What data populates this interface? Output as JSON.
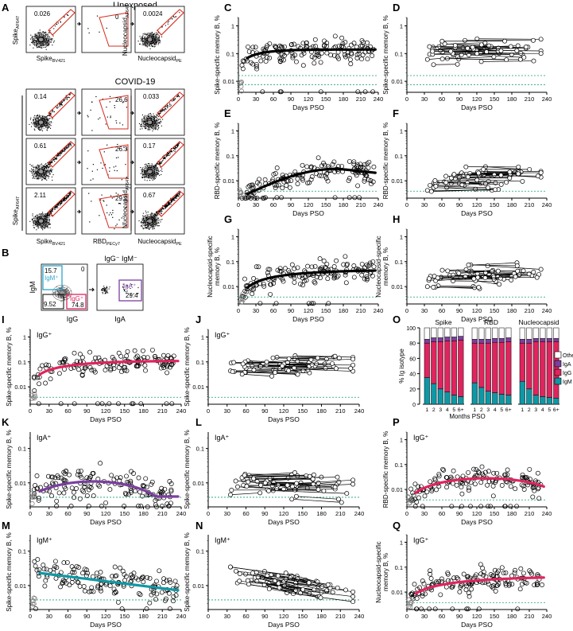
{
  "figure": {
    "panel_letters": [
      "A",
      "B",
      "C",
      "D",
      "E",
      "F",
      "G",
      "H",
      "I",
      "J",
      "K",
      "L",
      "M",
      "N",
      "O",
      "P",
      "Q"
    ],
    "x_axis_label": "Days PSO",
    "x_ticks": [
      "0",
      "30",
      "60",
      "90",
      "120",
      "150",
      "180",
      "210",
      "240"
    ],
    "y_ticks_log": [
      "0.01",
      "0.1",
      "1"
    ],
    "colors": {
      "spike_fit": "#000000",
      "igg": "#e0245e",
      "iga": "#7b3fa0",
      "igm": "#0e98a5",
      "others": "#ffffff",
      "threshold": "#1b9e77",
      "gate": "#d62c1e",
      "igm_gate": "#2aa6cf"
    }
  },
  "flow": {
    "unexposed_title": "Unexposed",
    "covid_title": "COVID-19",
    "spike_bv421": "Spike",
    "spike_bv421_sub": "BV421",
    "spike_af647": "Spike",
    "spike_af647_sub": "AF647",
    "rbd": "RBD",
    "rbd_sub": "PECy7",
    "nucleo": "Nucleocapsid",
    "nucleo_sub_af": "AF647",
    "nucleo_sub_pe": "PE",
    "unexposed_values": [
      "0.026",
      "0",
      "0.0024"
    ],
    "covid_rows": [
      [
        "0.14",
        "26.6",
        "0.033"
      ],
      [
        "0.61",
        "26.3",
        "0.17"
      ],
      [
        "2.11",
        "29.2",
        "0.67"
      ]
    ]
  },
  "panel_b": {
    "title": "IgG⁻ IgM⁻",
    "igm_label": "IgM⁺",
    "igg_label": "IgG⁺",
    "iga_label": "IgA⁺",
    "x1": "IgG",
    "y1": "IgM",
    "x2": "IgA",
    "values": {
      "igm": "15.7",
      "zero": "0",
      "neg": "9.52",
      "igg": "74.8",
      "iga": "29.4"
    }
  },
  "scatter_panels": [
    {
      "id": "C",
      "ylabel": [
        "Spike-specific memory B, %"
      ],
      "label": "",
      "color": "#000000",
      "fit": true,
      "paired": false,
      "ymin": 0.004,
      "ymax": 2
    },
    {
      "id": "D",
      "ylabel": [
        "Spike-specific memory B, %"
      ],
      "label": "",
      "color": "#000000",
      "fit": false,
      "paired": true,
      "ymin": 0.004,
      "ymax": 2
    },
    {
      "id": "E",
      "ylabel": [
        "RBD-specific memory B, %"
      ],
      "label": "",
      "color": "#000000",
      "fit": true,
      "paired": false,
      "ymin": 0.002,
      "ymax": 2
    },
    {
      "id": "F",
      "ylabel": [
        "RBD-specific memory B, %"
      ],
      "label": "",
      "color": "#000000",
      "fit": false,
      "paired": true,
      "ymin": 0.002,
      "ymax": 2
    },
    {
      "id": "G",
      "ylabel": [
        "Nucleocapsid-specific",
        "memory B, %"
      ],
      "label": "",
      "color": "#000000",
      "fit": true,
      "paired": false,
      "ymin": 0.002,
      "ymax": 2
    },
    {
      "id": "H",
      "ylabel": [
        "Nucleocapsid-specific",
        "memory B, %"
      ],
      "label": "",
      "color": "#000000",
      "fit": false,
      "paired": true,
      "ymin": 0.002,
      "ymax": 2
    },
    {
      "id": "I",
      "ylabel": [
        "Spike-specific memory B, %"
      ],
      "label": "IgG⁺",
      "color": "#e0245e",
      "fit": true,
      "paired": false,
      "ymin": 0.002,
      "ymax": 2
    },
    {
      "id": "J",
      "ylabel": [
        "Spike-specific memory B, %"
      ],
      "label": "IgG⁺",
      "color": "#000000",
      "fit": false,
      "paired": true,
      "ymin": 0.002,
      "ymax": 2
    },
    {
      "id": "K",
      "ylabel": [
        "Spike-specific memory B, %"
      ],
      "label": "IgA⁺",
      "color": "#7b3fa0",
      "fit": true,
      "paired": false,
      "ymin": 0.002,
      "ymax": 0.3
    },
    {
      "id": "L",
      "ylabel": [
        "Spike-specific memory B, %"
      ],
      "label": "IgA⁺",
      "color": "#000000",
      "fit": false,
      "paired": true,
      "ymin": 0.002,
      "ymax": 0.3
    },
    {
      "id": "M",
      "ylabel": [
        "Spike-specific memory B, %"
      ],
      "label": "IgM⁺",
      "color": "#0e98a5",
      "fit": true,
      "paired": false,
      "ymin": 0.002,
      "ymax": 0.3
    },
    {
      "id": "N",
      "ylabel": [
        "Spike-specific memory B, %"
      ],
      "label": "IgM⁺",
      "color": "#000000",
      "fit": false,
      "paired": true,
      "ymin": 0.002,
      "ymax": 0.3
    },
    {
      "id": "P",
      "ylabel": [
        "RBD-specific memory B, %"
      ],
      "label": "IgG⁺",
      "color": "#e0245e",
      "fit": true,
      "paired": false,
      "ymin": 0.002,
      "ymax": 2
    },
    {
      "id": "Q",
      "ylabel": [
        "Nucleocapsid-specific",
        "memory B, %"
      ],
      "label": "IgG⁺",
      "color": "#e0245e",
      "fit": true,
      "paired": false,
      "ymin": 0.002,
      "ymax": 2
    }
  ],
  "chart_data": {
    "type": "bar",
    "title": "",
    "groups": [
      "Spike",
      "RBD",
      "Nucleocapsid"
    ],
    "categories": [
      "1",
      "2",
      "3",
      "4",
      "5",
      "6+"
    ],
    "xlabel": "Months PSO",
    "ylabel": "% Ig isotype",
    "yticks": [
      "0",
      "20",
      "40",
      "60",
      "80",
      "100"
    ],
    "ylim": [
      0,
      100
    ],
    "stacked": true,
    "series": [
      {
        "name": "IgM",
        "color": "#0e98a5",
        "values": {
          "Spike": [
            35,
            27,
            20,
            16,
            12,
            10
          ],
          "RBD": [
            28,
            22,
            17,
            15,
            13,
            12
          ],
          "Nucleocapsid": [
            30,
            20,
            12,
            10,
            9,
            8
          ]
        }
      },
      {
        "name": "IgG",
        "color": "#e0245e",
        "values": {
          "Spike": [
            45,
            55,
            62,
            67,
            71,
            74
          ],
          "RBD": [
            52,
            58,
            63,
            66,
            68,
            70
          ],
          "Nucleocapsid": [
            50,
            60,
            70,
            72,
            73,
            74
          ]
        }
      },
      {
        "name": "IgA",
        "color": "#7b3fa0",
        "values": {
          "Spike": [
            5,
            5,
            5,
            5,
            5,
            5
          ],
          "RBD": [
            5,
            5,
            5,
            5,
            5,
            5
          ],
          "Nucleocapsid": [
            5,
            5,
            4,
            4,
            4,
            4
          ]
        }
      },
      {
        "name": "Others",
        "color": "#ffffff",
        "values": {
          "Spike": [
            15,
            13,
            13,
            12,
            12,
            11
          ],
          "RBD": [
            15,
            15,
            15,
            14,
            14,
            13
          ],
          "Nucleocapsid": [
            15,
            15,
            14,
            14,
            14,
            14
          ]
        }
      }
    ]
  }
}
